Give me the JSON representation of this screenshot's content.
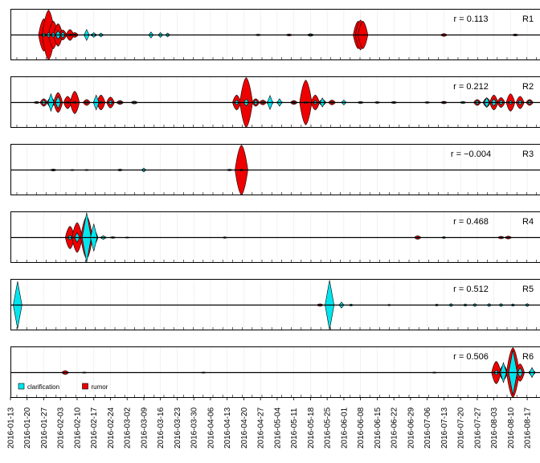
{
  "colors": {
    "clarification": "#00e5ee",
    "rumor": "#ee0000",
    "stroke": "#000000",
    "panel_border": "#000000",
    "grid": "#e8e8e8",
    "text": "#000000"
  },
  "legend": {
    "items": [
      {
        "label": "clarification",
        "color": "#00e5ee"
      },
      {
        "label": "rumor",
        "color": "#ee0000"
      }
    ],
    "placement": "bottom-left of last panel"
  },
  "chart_data": {
    "type": "area",
    "subtype": "mirrored-stream",
    "x_axis": {
      "type": "date",
      "range": [
        "2016-01-13",
        "2016-08-20"
      ],
      "tick_labels": [
        "2016-01-13",
        "2016-01-20",
        "2016-01-27",
        "2016-02-03",
        "2016-02-10",
        "2016-02-17",
        "2016-02-24",
        "2016-03-02",
        "2016-03-09",
        "2016-03-16",
        "2016-03-23",
        "2016-03-30",
        "2016-04-06",
        "2016-04-13",
        "2016-04-20",
        "2016-04-27",
        "2016-05-04",
        "2016-05-11",
        "2016-05-18",
        "2016-05-25",
        "2016-06-01",
        "2016-06-08",
        "2016-06-15",
        "2016-06-22",
        "2016-06-29",
        "2016-07-06",
        "2016-07-13",
        "2016-07-20",
        "2016-07-27",
        "2016-08-03",
        "2016-08-10",
        "2016-08-17"
      ],
      "label_orientation": "vertical"
    },
    "panels": [
      {
        "label": "R1",
        "r_text": "r = 0.113",
        "bursts": [
          {
            "date": "2016-01-27",
            "rumor": 0.65,
            "clar": 0.08
          },
          {
            "date": "2016-01-29",
            "rumor": 1.0,
            "clar": 0.1
          },
          {
            "date": "2016-01-31",
            "rumor": 0.55,
            "clar": 0.1
          },
          {
            "date": "2016-02-02",
            "rumor": 0.45,
            "clar": 0.18
          },
          {
            "date": "2016-02-04",
            "rumor": 0.2,
            "clar": 0.12
          },
          {
            "date": "2016-02-07",
            "rumor": 0.22,
            "clar": 0.04
          },
          {
            "date": "2016-02-09",
            "rumor": 0.1,
            "clar": 0.04
          },
          {
            "date": "2016-02-14",
            "rumor": 0.05,
            "clar": 0.22
          },
          {
            "date": "2016-02-17",
            "rumor": 0.06,
            "clar": 0.1
          },
          {
            "date": "2016-02-20",
            "rumor": 0.03,
            "clar": 0.08
          },
          {
            "date": "2016-03-12",
            "rumor": 0.0,
            "clar": 0.12
          },
          {
            "date": "2016-03-16",
            "rumor": 0.0,
            "clar": 0.1
          },
          {
            "date": "2016-03-19",
            "rumor": 0.0,
            "clar": 0.08
          },
          {
            "date": "2016-04-26",
            "rumor": 0.03,
            "clar": 0.02
          },
          {
            "date": "2016-05-09",
            "rumor": 0.04,
            "clar": 0.02
          },
          {
            "date": "2016-05-18",
            "rumor": 0.05,
            "clar": 0.05
          },
          {
            "date": "2016-06-07",
            "rumor": 0.55,
            "clar": 0.0
          },
          {
            "date": "2016-06-08",
            "rumor": 0.6,
            "clar": 0.0
          },
          {
            "date": "2016-06-09",
            "rumor": 0.55,
            "clar": 0.0
          },
          {
            "date": "2016-07-13",
            "rumor": 0.06,
            "clar": 0.02
          },
          {
            "date": "2016-08-12",
            "rumor": 0.04,
            "clar": 0.02
          }
        ]
      },
      {
        "label": "R2",
        "r_text": "r = 0.212",
        "bursts": [
          {
            "date": "2016-01-24",
            "rumor": 0.04,
            "clar": 0.03
          },
          {
            "date": "2016-01-27",
            "rumor": 0.15,
            "clar": 0.1
          },
          {
            "date": "2016-01-30",
            "rumor": 0.2,
            "clar": 0.35
          },
          {
            "date": "2016-02-02",
            "rumor": 0.4,
            "clar": 0.25
          },
          {
            "date": "2016-02-06",
            "rumor": 0.25,
            "clar": 0.05
          },
          {
            "date": "2016-02-09",
            "rumor": 0.45,
            "clar": 0.05
          },
          {
            "date": "2016-02-14",
            "rumor": 0.12,
            "clar": 0.05
          },
          {
            "date": "2016-02-18",
            "rumor": 0.05,
            "clar": 0.3
          },
          {
            "date": "2016-02-20",
            "rumor": 0.3,
            "clar": 0.05
          },
          {
            "date": "2016-02-24",
            "rumor": 0.22,
            "clar": 0.1
          },
          {
            "date": "2016-02-28",
            "rumor": 0.08,
            "clar": 0.05
          },
          {
            "date": "2016-03-05",
            "rumor": 0.06,
            "clar": 0.05
          },
          {
            "date": "2016-04-17",
            "rumor": 0.3,
            "clar": 0.1
          },
          {
            "date": "2016-04-21",
            "rumor": 1.0,
            "clar": 0.15
          },
          {
            "date": "2016-04-25",
            "rumor": 0.15,
            "clar": 0.1
          },
          {
            "date": "2016-04-28",
            "rumor": 0.1,
            "clar": 0.05
          },
          {
            "date": "2016-05-01",
            "rumor": 0.08,
            "clar": 0.28
          },
          {
            "date": "2016-05-05",
            "rumor": 0.05,
            "clar": 0.15
          },
          {
            "date": "2016-05-11",
            "rumor": 0.08,
            "clar": 0.04
          },
          {
            "date": "2016-05-16",
            "rumor": 0.9,
            "clar": 0.05
          },
          {
            "date": "2016-05-20",
            "rumor": 0.3,
            "clar": 0.08
          },
          {
            "date": "2016-05-23",
            "rumor": 0.12,
            "clar": 0.18
          },
          {
            "date": "2016-05-27",
            "rumor": 0.1,
            "clar": 0.04
          },
          {
            "date": "2016-06-01",
            "rumor": 0.03,
            "clar": 0.1
          },
          {
            "date": "2016-06-08",
            "rumor": 0.04,
            "clar": 0.04
          },
          {
            "date": "2016-06-15",
            "rumor": 0.03,
            "clar": 0.04
          },
          {
            "date": "2016-06-22",
            "rumor": 0.04,
            "clar": 0.03
          },
          {
            "date": "2016-07-06",
            "rumor": 0.03,
            "clar": 0.03
          },
          {
            "date": "2016-07-13",
            "rumor": 0.05,
            "clar": 0.03
          },
          {
            "date": "2016-07-21",
            "rumor": 0.04,
            "clar": 0.05
          },
          {
            "date": "2016-07-27",
            "rumor": 0.12,
            "clar": 0.08
          },
          {
            "date": "2016-07-31",
            "rumor": 0.18,
            "clar": 0.2
          },
          {
            "date": "2016-08-03",
            "rumor": 0.3,
            "clar": 0.15
          },
          {
            "date": "2016-08-06",
            "rumor": 0.2,
            "clar": 0.1
          },
          {
            "date": "2016-08-10",
            "rumor": 0.35,
            "clar": 0.08
          },
          {
            "date": "2016-08-14",
            "rumor": 0.25,
            "clar": 0.1
          },
          {
            "date": "2016-08-18",
            "rumor": 0.12,
            "clar": 0.08
          }
        ]
      },
      {
        "label": "R3",
        "r_text": "r = −0.004",
        "bursts": [
          {
            "date": "2016-01-31",
            "rumor": 0.04,
            "clar": 0.03
          },
          {
            "date": "2016-02-08",
            "rumor": 0.02,
            "clar": 0.02
          },
          {
            "date": "2016-02-14",
            "rumor": 0.02,
            "clar": 0.02
          },
          {
            "date": "2016-02-28",
            "rumor": 0.03,
            "clar": 0.04
          },
          {
            "date": "2016-03-09",
            "rumor": 0.0,
            "clar": 0.08
          },
          {
            "date": "2016-04-14",
            "rumor": 0.03,
            "clar": 0.02
          },
          {
            "date": "2016-04-19",
            "rumor": 1.0,
            "clar": 0.04
          }
        ]
      },
      {
        "label": "R4",
        "r_text": "r = 0.468",
        "bursts": [
          {
            "date": "2016-02-07",
            "rumor": 0.45,
            "clar": 0.1
          },
          {
            "date": "2016-02-10",
            "rumor": 0.6,
            "clar": 0.2
          },
          {
            "date": "2016-02-14",
            "rumor": 0.85,
            "clar": 1.0
          },
          {
            "date": "2016-02-17",
            "rumor": 0.3,
            "clar": 0.55
          },
          {
            "date": "2016-02-21",
            "rumor": 0.05,
            "clar": 0.08
          },
          {
            "date": "2016-02-25",
            "rumor": 0.03,
            "clar": 0.03
          },
          {
            "date": "2016-03-02",
            "rumor": 0.02,
            "clar": 0.02
          },
          {
            "date": "2016-04-12",
            "rumor": 0.02,
            "clar": 0.03
          },
          {
            "date": "2016-07-02",
            "rumor": 0.07,
            "clar": 0.02
          },
          {
            "date": "2016-07-13",
            "rumor": 0.02,
            "clar": 0.04
          },
          {
            "date": "2016-08-06",
            "rumor": 0.05,
            "clar": 0.02
          },
          {
            "date": "2016-08-09",
            "rumor": 0.06,
            "clar": 0.02
          }
        ]
      },
      {
        "label": "R5",
        "r_text": "r = 0.512",
        "bursts": [
          {
            "date": "2016-01-16",
            "rumor": 0.0,
            "clar": 0.95
          },
          {
            "date": "2016-05-22",
            "rumor": 0.05,
            "clar": 0.02
          },
          {
            "date": "2016-05-26",
            "rumor": 0.05,
            "clar": 1.0
          },
          {
            "date": "2016-05-31",
            "rumor": 0.03,
            "clar": 0.12
          },
          {
            "date": "2016-06-04",
            "rumor": 0.02,
            "clar": 0.04
          },
          {
            "date": "2016-06-20",
            "rumor": 0.0,
            "clar": 0.03
          },
          {
            "date": "2016-07-10",
            "rumor": 0.0,
            "clar": 0.04
          },
          {
            "date": "2016-07-16",
            "rumor": 0.0,
            "clar": 0.06
          },
          {
            "date": "2016-07-22",
            "rumor": 0.0,
            "clar": 0.05
          },
          {
            "date": "2016-07-26",
            "rumor": 0.0,
            "clar": 0.06
          },
          {
            "date": "2016-08-01",
            "rumor": 0.0,
            "clar": 0.06
          },
          {
            "date": "2016-08-06",
            "rumor": 0.0,
            "clar": 0.06
          },
          {
            "date": "2016-08-11",
            "rumor": 0.0,
            "clar": 0.05
          },
          {
            "date": "2016-08-17",
            "rumor": 0.0,
            "clar": 0.06
          }
        ]
      },
      {
        "label": "R6",
        "r_text": "r = 0.506",
        "bursts": [
          {
            "date": "2016-02-05",
            "rumor": 0.08,
            "clar": 0.0
          },
          {
            "date": "2016-02-13",
            "rumor": 0.02,
            "clar": 0.02
          },
          {
            "date": "2016-04-03",
            "rumor": 0.02,
            "clar": 0.02
          },
          {
            "date": "2016-07-09",
            "rumor": 0.02,
            "clar": 0.02
          },
          {
            "date": "2016-08-04",
            "rumor": 0.45,
            "clar": 0.1
          },
          {
            "date": "2016-08-07",
            "rumor": 0.3,
            "clar": 0.4
          },
          {
            "date": "2016-08-11",
            "rumor": 1.0,
            "clar": 0.9
          },
          {
            "date": "2016-08-14",
            "rumor": 0.35,
            "clar": 0.2
          },
          {
            "date": "2016-08-19",
            "rumor": 0.1,
            "clar": 0.2
          }
        ]
      }
    ]
  }
}
